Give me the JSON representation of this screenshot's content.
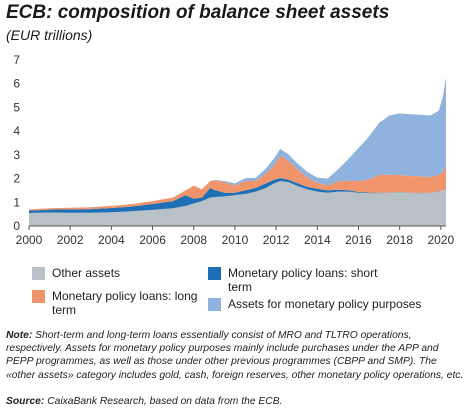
{
  "header": {
    "title": "ECB: composition of balance sheet assets",
    "subtitle": "(EUR trillions)"
  },
  "legend": {
    "other_assets": "Other assets",
    "mp_short": "Monetary policy loans: short term",
    "mp_long": "Monetary policy loans: long term",
    "app_assets": "Assets for monetary policy purposes"
  },
  "note": {
    "note_label": "Note:",
    "note_text": " Short-term and long-term loans essentially consist of MRO and TLTRO operations, respectively. Assets for monetary policy purposes mainly include purchases under the APP and PEPP programmes, as well as those under other previous programmes (CBPP and SMP). The «other assets» category includes gold, cash, foreign reserves, other monetary policy operations, etc.",
    "source_label": "Source:",
    "source_text": " CaixaBank Research, based on data from the ECB."
  },
  "colors": {
    "other_assets": "#b7c1c7",
    "mp_short": "#1f6fb6",
    "mp_long": "#f0956b",
    "app_assets": "#8fb2de"
  },
  "chart_data": {
    "type": "area",
    "stacked": true,
    "ylim": [
      0,
      7
    ],
    "xlim": [
      2000,
      2020.25
    ],
    "yticks": [
      0,
      1,
      2,
      3,
      4,
      5,
      6,
      7
    ],
    "xticks": [
      2000,
      2002,
      2004,
      2006,
      2008,
      2010,
      2012,
      2014,
      2016,
      2018,
      2020
    ],
    "grid": false,
    "x": [
      2000,
      2001,
      2002,
      2003,
      2004,
      2005,
      2006,
      2007,
      2007.6,
      2008,
      2008.4,
      2008.8,
      2009,
      2009.5,
      2010,
      2010.5,
      2011,
      2011.5,
      2011.9,
      2012.2,
      2012.6,
      2013,
      2013.5,
      2014,
      2014.5,
      2015,
      2015.5,
      2016,
      2016.5,
      2017,
      2017.5,
      2018,
      2018.5,
      2019,
      2019.5,
      2019.9,
      2020.1,
      2020.25
    ],
    "series": [
      {
        "name": "Other assets",
        "values": [
          0.55,
          0.57,
          0.56,
          0.56,
          0.58,
          0.62,
          0.68,
          0.75,
          0.85,
          0.95,
          1.05,
          1.2,
          1.22,
          1.25,
          1.3,
          1.35,
          1.45,
          1.6,
          1.8,
          1.9,
          1.85,
          1.7,
          1.55,
          1.45,
          1.4,
          1.45,
          1.45,
          1.4,
          1.38,
          1.38,
          1.4,
          1.42,
          1.4,
          1.38,
          1.4,
          1.45,
          1.5,
          1.55
        ]
      },
      {
        "name": "Monetary policy loans: short term",
        "values": [
          0.1,
          0.12,
          0.14,
          0.15,
          0.18,
          0.2,
          0.25,
          0.3,
          0.45,
          0.2,
          0.15,
          0.4,
          0.3,
          0.15,
          0.1,
          0.15,
          0.15,
          0.2,
          0.15,
          0.12,
          0.1,
          0.12,
          0.1,
          0.12,
          0.1,
          0.08,
          0.06,
          0.04,
          0.03,
          0.02,
          0.01,
          0.01,
          0.01,
          0.01,
          0.01,
          0.01,
          0.01,
          0.01
        ]
      },
      {
        "name": "Monetary policy loans: long term",
        "values": [
          0.05,
          0.06,
          0.07,
          0.08,
          0.09,
          0.1,
          0.12,
          0.15,
          0.2,
          0.55,
          0.35,
          0.3,
          0.4,
          0.45,
          0.3,
          0.4,
          0.3,
          0.4,
          0.6,
          0.95,
          0.8,
          0.6,
          0.4,
          0.25,
          0.2,
          0.35,
          0.4,
          0.45,
          0.55,
          0.75,
          0.75,
          0.72,
          0.7,
          0.7,
          0.65,
          0.7,
          0.75,
          1.0
        ]
      },
      {
        "name": "Assets for monetary policy purposes",
        "values": [
          0,
          0,
          0,
          0,
          0,
          0,
          0,
          0,
          0,
          0,
          0,
          0,
          0.02,
          0.05,
          0.1,
          0.12,
          0.13,
          0.22,
          0.3,
          0.28,
          0.27,
          0.25,
          0.24,
          0.22,
          0.3,
          0.5,
          0.9,
          1.4,
          1.8,
          2.2,
          2.5,
          2.6,
          2.6,
          2.6,
          2.6,
          2.7,
          3.2,
          3.7
        ]
      }
    ]
  }
}
